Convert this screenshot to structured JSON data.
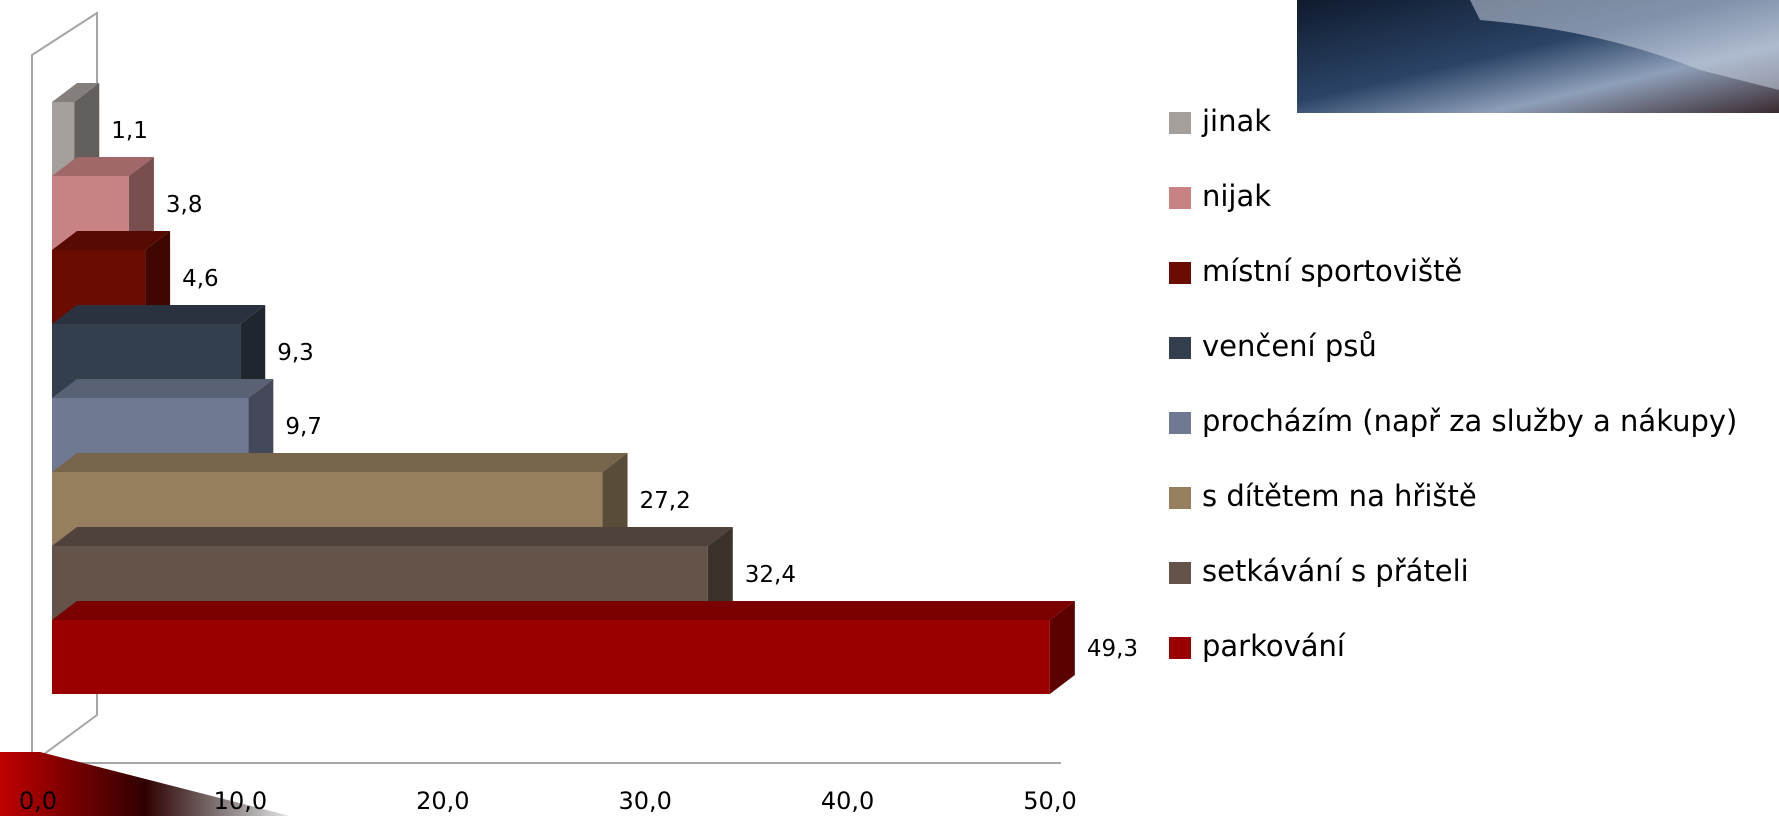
{
  "chart_data": {
    "type": "bar3d",
    "categories": [
      "jinak",
      "nijak",
      "místní sportoviště",
      "venčení psů",
      "procházím (např za služby a nákupy)",
      "s dítětem na hřiště",
      "setkávání  s přáteli",
      "parkování"
    ],
    "values": [
      1.1,
      3.8,
      4.6,
      9.3,
      9.7,
      27.2,
      32.4,
      49.3
    ],
    "value_labels": [
      "1,1",
      "3,8",
      "4,6",
      "9,3",
      "9,7",
      "27,2",
      "32,4",
      "49,3"
    ],
    "colors": [
      "#a59f9b",
      "#c98283",
      "#6b0c02",
      "#333f4d",
      "#6f7a92",
      "#957f5f",
      "#635348",
      "#9a0000"
    ],
    "xlim": [
      0,
      50
    ],
    "xticks": [
      {
        "value": 0,
        "label": "0,0"
      },
      {
        "value": 10,
        "label": "10,0"
      },
      {
        "value": 20,
        "label": "20,0"
      },
      {
        "value": 30,
        "label": "30,0"
      },
      {
        "value": 40,
        "label": "40,0"
      },
      {
        "value": 50,
        "label": "50,0"
      }
    ],
    "legend": "right"
  }
}
